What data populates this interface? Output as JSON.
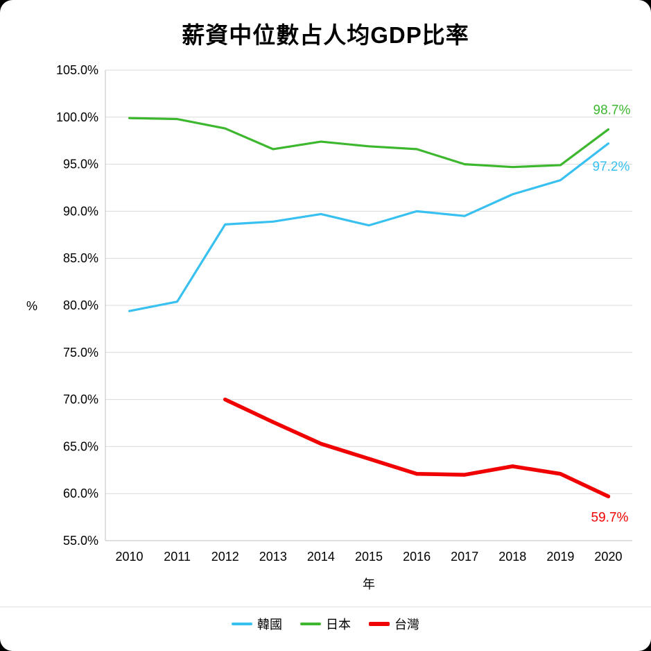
{
  "chart_data": {
    "type": "line",
    "title": "薪資中位數占人均GDP比率",
    "xlabel": "年",
    "ylabel": "%",
    "x": [
      "2010",
      "2011",
      "2012",
      "2013",
      "2014",
      "2015",
      "2016",
      "2017",
      "2018",
      "2019",
      "2020"
    ],
    "ylim": [
      55,
      105
    ],
    "grid": true,
    "legend_position": "bottom",
    "y_ticks": [
      {
        "value": 55,
        "label": "55.0%"
      },
      {
        "value": 60,
        "label": "60.0%"
      },
      {
        "value": 65,
        "label": "65.0%"
      },
      {
        "value": 70,
        "label": "70.0%"
      },
      {
        "value": 75,
        "label": "75.0%"
      },
      {
        "value": 80,
        "label": "80.0%"
      },
      {
        "value": 85,
        "label": "85.0%"
      },
      {
        "value": 90,
        "label": "90.0%"
      },
      {
        "value": 95,
        "label": "95.0%"
      },
      {
        "value": 100,
        "label": "100.0%"
      },
      {
        "value": 105,
        "label": "105.0%"
      }
    ],
    "series": [
      {
        "id": "korea",
        "name": "韓國",
        "color": "#38C0F0",
        "line_width": 3.2,
        "values": [
          79.4,
          80.4,
          88.6,
          88.9,
          89.7,
          88.5,
          90.0,
          89.5,
          91.8,
          93.3,
          97.2
        ],
        "end_label": "97.2%",
        "label_dx": 4,
        "label_dy": 39
      },
      {
        "id": "japan",
        "name": "日本",
        "color": "#3CB72E",
        "line_width": 3.2,
        "values": [
          99.9,
          99.8,
          98.8,
          96.6,
          97.4,
          96.9,
          96.6,
          95.0,
          94.7,
          94.9,
          98.7
        ],
        "end_label": "98.7%",
        "label_dx": 5,
        "label_dy": -22
      },
      {
        "id": "taiwan",
        "name": "台灣",
        "color": "#F00000",
        "line_width": 5.5,
        "values": [
          null,
          null,
          70.0,
          67.6,
          65.3,
          63.7,
          62.1,
          62.0,
          62.9,
          62.1,
          59.7
        ],
        "end_label": "59.7%",
        "label_dx": 2,
        "label_dy": 36
      }
    ],
    "colors": {
      "gridline": "#D9D9D9",
      "axis_line": "#BFBFBF",
      "text": "#000000"
    }
  }
}
